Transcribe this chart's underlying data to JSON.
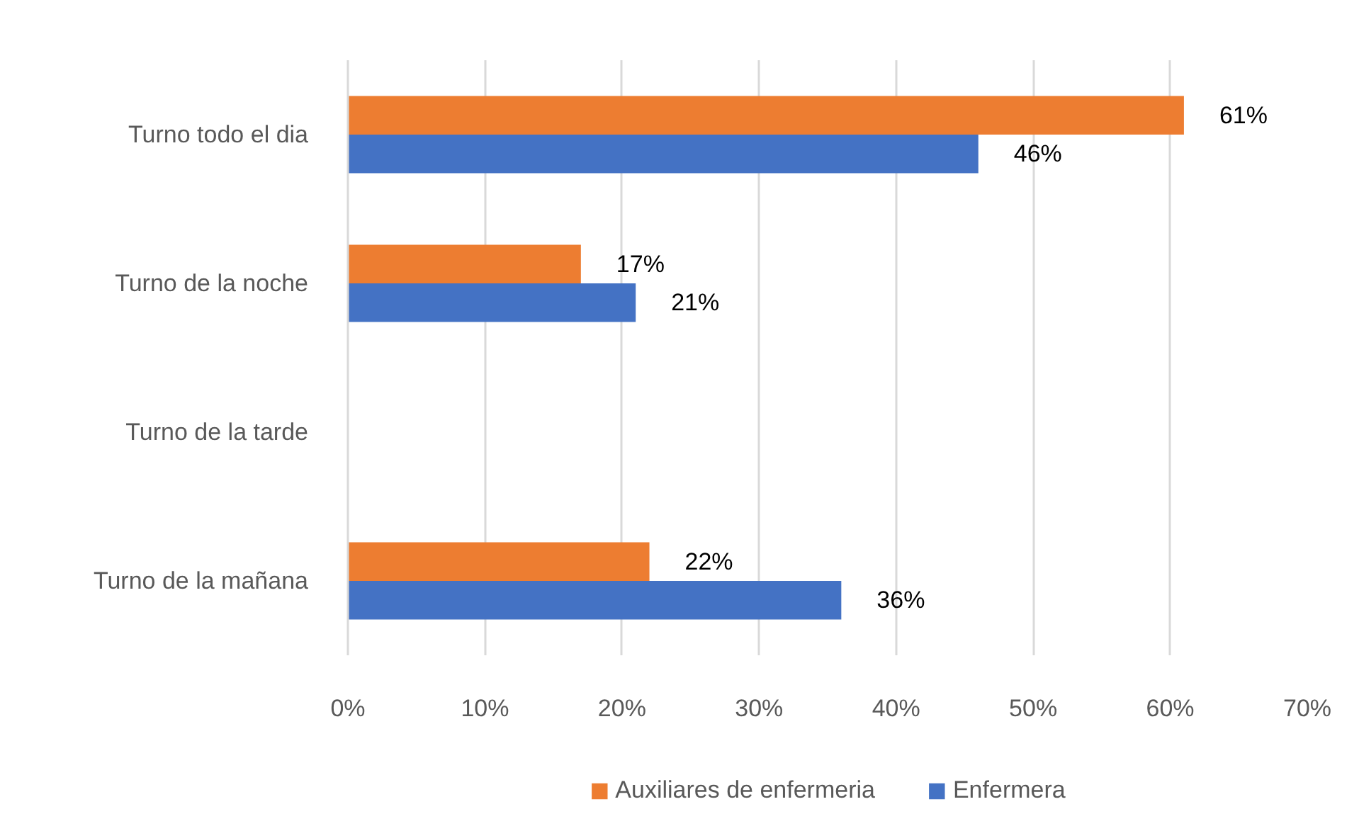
{
  "chart_data": {
    "type": "bar",
    "orientation": "horizontal",
    "categories": [
      "Turno todo el dia",
      "Turno de la noche",
      "Turno de la tarde",
      "Turno de la mañana"
    ],
    "series": [
      {
        "name": "Auxiliares de enfermeria",
        "color": "#ed7d31",
        "values": [
          61,
          17,
          null,
          22
        ],
        "value_labels": [
          "61%",
          "17%",
          null,
          "22%"
        ]
      },
      {
        "name": "Enfermera",
        "color": "#4472c4",
        "values": [
          46,
          21,
          null,
          36
        ],
        "value_labels": [
          "46%",
          "21%",
          null,
          "36%"
        ]
      }
    ],
    "xlim": [
      0,
      70
    ],
    "xticks": [
      {
        "value": 0,
        "label": "0%"
      },
      {
        "value": 10,
        "label": "10%"
      },
      {
        "value": 20,
        "label": "20%"
      },
      {
        "value": 30,
        "label": "30%"
      },
      {
        "value": 40,
        "label": "40%"
      },
      {
        "value": 50,
        "label": "50%"
      },
      {
        "value": 60,
        "label": "60%"
      },
      {
        "value": 70,
        "label": "70%"
      }
    ],
    "grid": "x",
    "legend": "bottom"
  }
}
